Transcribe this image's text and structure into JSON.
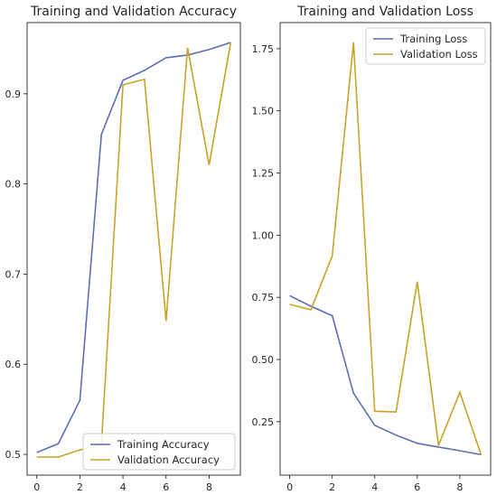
{
  "colors": {
    "training": "#5a6fb4",
    "validation": "#c9a227",
    "axis": "#262626",
    "legend_border": "#cccccc"
  },
  "chart_data": [
    {
      "type": "line",
      "title": "Training and Validation Accuracy",
      "xlabel": "",
      "ylabel": "",
      "xlim": [
        -0.45,
        9.45
      ],
      "ylim": [
        0.477,
        0.979
      ],
      "xticks": [
        0,
        2,
        4,
        6,
        8
      ],
      "yticks": [
        0.5,
        0.6,
        0.7,
        0.8,
        0.9
      ],
      "ytick_labels": [
        "0.5",
        "0.6",
        "0.7",
        "0.8",
        "0.9"
      ],
      "grid": false,
      "legend_position": "lower-right",
      "x": [
        0,
        1,
        2,
        3,
        4,
        5,
        6,
        7,
        8,
        9
      ],
      "series": [
        {
          "name": "Training Accuracy",
          "color_key": "training",
          "values": [
            0.502,
            0.512,
            0.56,
            0.855,
            0.915,
            0.926,
            0.94,
            0.943,
            0.949,
            0.957
          ]
        },
        {
          "name": "Validation Accuracy",
          "color_key": "validation",
          "values": [
            0.497,
            0.497,
            0.505,
            0.511,
            0.91,
            0.916,
            0.648,
            0.951,
            0.821,
            0.957
          ]
        }
      ]
    },
    {
      "type": "line",
      "title": "Training and Validation Loss",
      "xlabel": "",
      "ylabel": "",
      "xlim": [
        -0.45,
        9.45
      ],
      "ylim": [
        0.035,
        1.855
      ],
      "xticks": [
        0,
        2,
        4,
        6,
        8
      ],
      "yticks": [
        0.25,
        0.5,
        0.75,
        1.0,
        1.25,
        1.5,
        1.75
      ],
      "ytick_labels": [
        "0.25",
        "0.50",
        "0.75",
        "1.00",
        "1.25",
        "1.50",
        "1.75"
      ],
      "grid": false,
      "legend_position": "upper-right",
      "x": [
        0,
        1,
        2,
        3,
        4,
        5,
        6,
        7,
        8,
        9
      ],
      "series": [
        {
          "name": "Training Loss",
          "color_key": "training",
          "values": [
            0.757,
            0.714,
            0.676,
            0.365,
            0.235,
            0.196,
            0.163,
            0.148,
            0.133,
            0.117
          ]
        },
        {
          "name": "Validation Loss",
          "color_key": "validation",
          "values": [
            0.722,
            0.7,
            0.917,
            1.775,
            0.292,
            0.289,
            0.813,
            0.155,
            0.368,
            0.117
          ]
        }
      ]
    }
  ]
}
